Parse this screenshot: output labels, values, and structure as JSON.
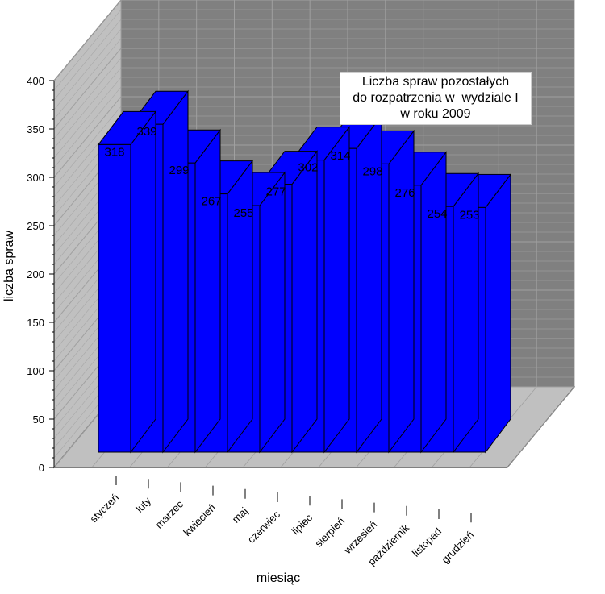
{
  "chart_data": {
    "type": "bar",
    "title_lines": [
      "Liczba spraw pozostałych",
      "do rozpatrzenia w  wydziale I",
      "w roku 2009"
    ],
    "xlabel": "miesiąc",
    "ylabel": "liczba spraw",
    "categories": [
      "styczeń",
      "luty",
      "marzec",
      "kwiecień",
      "maj",
      "czerwiec",
      "lipiec",
      "sierpień",
      "wrzesień",
      "październik",
      "listopad",
      "grudzień"
    ],
    "values": [
      318,
      339,
      299,
      267,
      255,
      277,
      302,
      314,
      298,
      276,
      254,
      253
    ],
    "yticks": [
      0,
      50,
      100,
      150,
      200,
      250,
      300,
      350,
      400
    ],
    "ylim": [
      0,
      400
    ],
    "grid": true,
    "three_d": true,
    "colors": {
      "bar": "#0000ff",
      "back_wall": "#808080",
      "side_wall": "#c0c0c0",
      "floor": "#c0c0c0",
      "grid_back": "#a0a0a0",
      "grid_side": "#a8a8a8"
    }
  }
}
